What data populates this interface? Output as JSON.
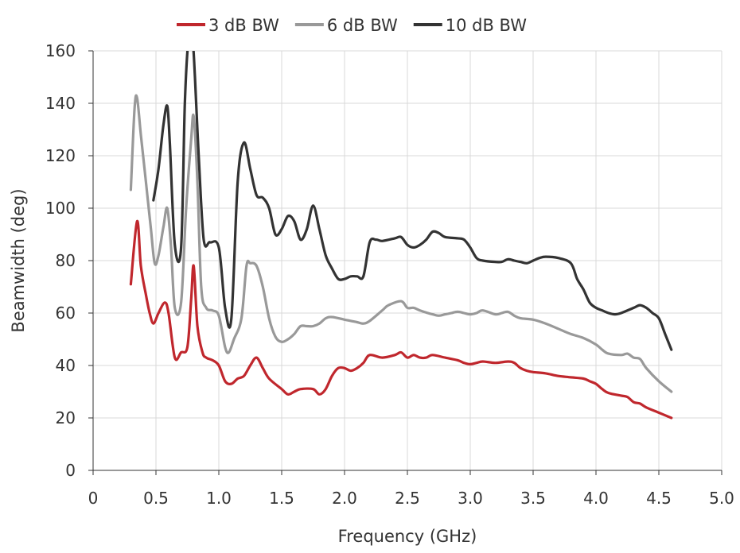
{
  "chart_data": {
    "type": "line",
    "xlabel": "Frequency (GHz)",
    "ylabel": "Beamwidth (deg)",
    "xlim": [
      0,
      5
    ],
    "ylim": [
      0,
      160
    ],
    "x_ticks": [
      0,
      0.5,
      1.0,
      1.5,
      2.0,
      2.5,
      3.0,
      3.5,
      4.0,
      4.5,
      5.0
    ],
    "x_tick_labels": [
      "0",
      "0.5",
      "1.0",
      "1.5",
      "2.0",
      "2.5",
      "3.0",
      "3.5",
      "4.0",
      "4.5",
      "5.0"
    ],
    "y_ticks": [
      0,
      20,
      40,
      60,
      80,
      100,
      120,
      140,
      160
    ],
    "y_tick_labels": [
      "0",
      "20",
      "40",
      "60",
      "80",
      "100",
      "120",
      "140",
      "160"
    ],
    "grid": true,
    "legend_position": "top-center",
    "series": [
      {
        "name": "3 dB BW",
        "color": "#c0272d",
        "points": [
          [
            0.3,
            71
          ],
          [
            0.35,
            95
          ],
          [
            0.38,
            78
          ],
          [
            0.42,
            67
          ],
          [
            0.45,
            60
          ],
          [
            0.48,
            56
          ],
          [
            0.52,
            60
          ],
          [
            0.57,
            64
          ],
          [
            0.6,
            60
          ],
          [
            0.65,
            43
          ],
          [
            0.7,
            45
          ],
          [
            0.75,
            47
          ],
          [
            0.78,
            65
          ],
          [
            0.8,
            78
          ],
          [
            0.83,
            55
          ],
          [
            0.87,
            45
          ],
          [
            0.9,
            43
          ],
          [
            0.95,
            42
          ],
          [
            1.0,
            40
          ],
          [
            1.05,
            34
          ],
          [
            1.1,
            33
          ],
          [
            1.15,
            35
          ],
          [
            1.2,
            36
          ],
          [
            1.25,
            40
          ],
          [
            1.3,
            43
          ],
          [
            1.35,
            39
          ],
          [
            1.4,
            35
          ],
          [
            1.5,
            31
          ],
          [
            1.55,
            29
          ],
          [
            1.6,
            30
          ],
          [
            1.65,
            31
          ],
          [
            1.75,
            31
          ],
          [
            1.8,
            29
          ],
          [
            1.85,
            31
          ],
          [
            1.9,
            36
          ],
          [
            1.95,
            39
          ],
          [
            2.0,
            39
          ],
          [
            2.05,
            38
          ],
          [
            2.1,
            39
          ],
          [
            2.15,
            41
          ],
          [
            2.2,
            44
          ],
          [
            2.3,
            43
          ],
          [
            2.4,
            44
          ],
          [
            2.45,
            45
          ],
          [
            2.5,
            43
          ],
          [
            2.55,
            44
          ],
          [
            2.6,
            43
          ],
          [
            2.65,
            43
          ],
          [
            2.7,
            44
          ],
          [
            2.8,
            43
          ],
          [
            2.9,
            42
          ],
          [
            2.95,
            41
          ],
          [
            3.0,
            40.5
          ],
          [
            3.05,
            41
          ],
          [
            3.1,
            41.5
          ],
          [
            3.2,
            41
          ],
          [
            3.3,
            41.5
          ],
          [
            3.35,
            41
          ],
          [
            3.4,
            39
          ],
          [
            3.45,
            38
          ],
          [
            3.5,
            37.5
          ],
          [
            3.6,
            37
          ],
          [
            3.7,
            36
          ],
          [
            3.8,
            35.5
          ],
          [
            3.9,
            35
          ],
          [
            3.95,
            34
          ],
          [
            4.0,
            33
          ],
          [
            4.05,
            31
          ],
          [
            4.1,
            29.5
          ],
          [
            4.2,
            28.5
          ],
          [
            4.25,
            28
          ],
          [
            4.3,
            26
          ],
          [
            4.35,
            25.5
          ],
          [
            4.4,
            24
          ],
          [
            4.5,
            22
          ],
          [
            4.6,
            20
          ]
        ]
      },
      {
        "name": "6 dB BW",
        "color": "#999999",
        "points": [
          [
            0.3,
            107
          ],
          [
            0.33,
            138
          ],
          [
            0.35,
            142
          ],
          [
            0.38,
            128
          ],
          [
            0.42,
            110
          ],
          [
            0.46,
            92
          ],
          [
            0.49,
            79
          ],
          [
            0.52,
            82
          ],
          [
            0.56,
            93
          ],
          [
            0.59,
            100
          ],
          [
            0.62,
            85
          ],
          [
            0.65,
            62
          ],
          [
            0.7,
            64
          ],
          [
            0.74,
            100
          ],
          [
            0.78,
            126
          ],
          [
            0.8,
            135
          ],
          [
            0.83,
            110
          ],
          [
            0.86,
            70
          ],
          [
            0.9,
            62
          ],
          [
            0.95,
            61
          ],
          [
            1.0,
            59
          ],
          [
            1.05,
            47
          ],
          [
            1.08,
            45
          ],
          [
            1.12,
            50
          ],
          [
            1.18,
            58
          ],
          [
            1.22,
            78
          ],
          [
            1.25,
            79
          ],
          [
            1.3,
            78
          ],
          [
            1.35,
            70
          ],
          [
            1.4,
            58
          ],
          [
            1.45,
            51
          ],
          [
            1.5,
            49
          ],
          [
            1.55,
            50
          ],
          [
            1.6,
            52
          ],
          [
            1.65,
            55
          ],
          [
            1.7,
            55
          ],
          [
            1.75,
            55
          ],
          [
            1.8,
            56
          ],
          [
            1.85,
            58
          ],
          [
            1.9,
            58.5
          ],
          [
            2.0,
            57.5
          ],
          [
            2.1,
            56.5
          ],
          [
            2.15,
            56
          ],
          [
            2.2,
            57
          ],
          [
            2.3,
            61
          ],
          [
            2.35,
            63
          ],
          [
            2.45,
            64.5
          ],
          [
            2.5,
            62
          ],
          [
            2.55,
            62
          ],
          [
            2.6,
            61
          ],
          [
            2.7,
            59.5
          ],
          [
            2.75,
            59
          ],
          [
            2.8,
            59.5
          ],
          [
            2.85,
            60
          ],
          [
            2.9,
            60.5
          ],
          [
            2.95,
            60
          ],
          [
            3.0,
            59.5
          ],
          [
            3.05,
            60
          ],
          [
            3.1,
            61
          ],
          [
            3.2,
            59.5
          ],
          [
            3.25,
            60
          ],
          [
            3.3,
            60.5
          ],
          [
            3.35,
            59
          ],
          [
            3.4,
            58
          ],
          [
            3.5,
            57.5
          ],
          [
            3.6,
            56
          ],
          [
            3.7,
            54
          ],
          [
            3.8,
            52
          ],
          [
            3.9,
            50.5
          ],
          [
            4.0,
            48
          ],
          [
            4.05,
            46
          ],
          [
            4.1,
            44.5
          ],
          [
            4.2,
            44
          ],
          [
            4.25,
            44.5
          ],
          [
            4.3,
            43
          ],
          [
            4.35,
            42.5
          ],
          [
            4.4,
            39
          ],
          [
            4.5,
            34
          ],
          [
            4.6,
            30
          ]
        ]
      },
      {
        "name": "10 dB BW",
        "color": "#333333",
        "points": [
          [
            0.48,
            103
          ],
          [
            0.52,
            115
          ],
          [
            0.56,
            132
          ],
          [
            0.59,
            139
          ],
          [
            0.61,
            125
          ],
          [
            0.65,
            86
          ],
          [
            0.7,
            85
          ],
          [
            0.73,
            140
          ],
          [
            0.76,
            165
          ],
          [
            0.79,
            165
          ],
          [
            0.81,
            150
          ],
          [
            0.84,
            120
          ],
          [
            0.88,
            88
          ],
          [
            0.93,
            87
          ],
          [
            1.0,
            85
          ],
          [
            1.05,
            62
          ],
          [
            1.1,
            58
          ],
          [
            1.15,
            110
          ],
          [
            1.2,
            125
          ],
          [
            1.25,
            115
          ],
          [
            1.3,
            105
          ],
          [
            1.35,
            104
          ],
          [
            1.4,
            100
          ],
          [
            1.45,
            90
          ],
          [
            1.5,
            92
          ],
          [
            1.55,
            97
          ],
          [
            1.6,
            95
          ],
          [
            1.65,
            88
          ],
          [
            1.7,
            92
          ],
          [
            1.75,
            101
          ],
          [
            1.8,
            92
          ],
          [
            1.85,
            82
          ],
          [
            1.9,
            77
          ],
          [
            1.95,
            73
          ],
          [
            2.0,
            73
          ],
          [
            2.05,
            74
          ],
          [
            2.1,
            74
          ],
          [
            2.15,
            74
          ],
          [
            2.2,
            87
          ],
          [
            2.25,
            88
          ],
          [
            2.3,
            87.5
          ],
          [
            2.4,
            88.5
          ],
          [
            2.45,
            89
          ],
          [
            2.5,
            86
          ],
          [
            2.55,
            85
          ],
          [
            2.6,
            86
          ],
          [
            2.65,
            88
          ],
          [
            2.7,
            91
          ],
          [
            2.75,
            90.5
          ],
          [
            2.8,
            89
          ],
          [
            2.9,
            88.5
          ],
          [
            2.95,
            88
          ],
          [
            3.0,
            85
          ],
          [
            3.05,
            81
          ],
          [
            3.1,
            80
          ],
          [
            3.2,
            79.5
          ],
          [
            3.25,
            79.5
          ],
          [
            3.3,
            80.5
          ],
          [
            3.35,
            80
          ],
          [
            3.4,
            79.5
          ],
          [
            3.45,
            79
          ],
          [
            3.5,
            80
          ],
          [
            3.55,
            81
          ],
          [
            3.6,
            81.5
          ],
          [
            3.7,
            81
          ],
          [
            3.8,
            79
          ],
          [
            3.85,
            73
          ],
          [
            3.9,
            69
          ],
          [
            3.95,
            64
          ],
          [
            4.0,
            62
          ],
          [
            4.05,
            61
          ],
          [
            4.1,
            60
          ],
          [
            4.15,
            59.5
          ],
          [
            4.2,
            60
          ],
          [
            4.3,
            62
          ],
          [
            4.35,
            63
          ],
          [
            4.4,
            62
          ],
          [
            4.45,
            60
          ],
          [
            4.5,
            58
          ],
          [
            4.55,
            52
          ],
          [
            4.6,
            46
          ]
        ]
      }
    ]
  }
}
